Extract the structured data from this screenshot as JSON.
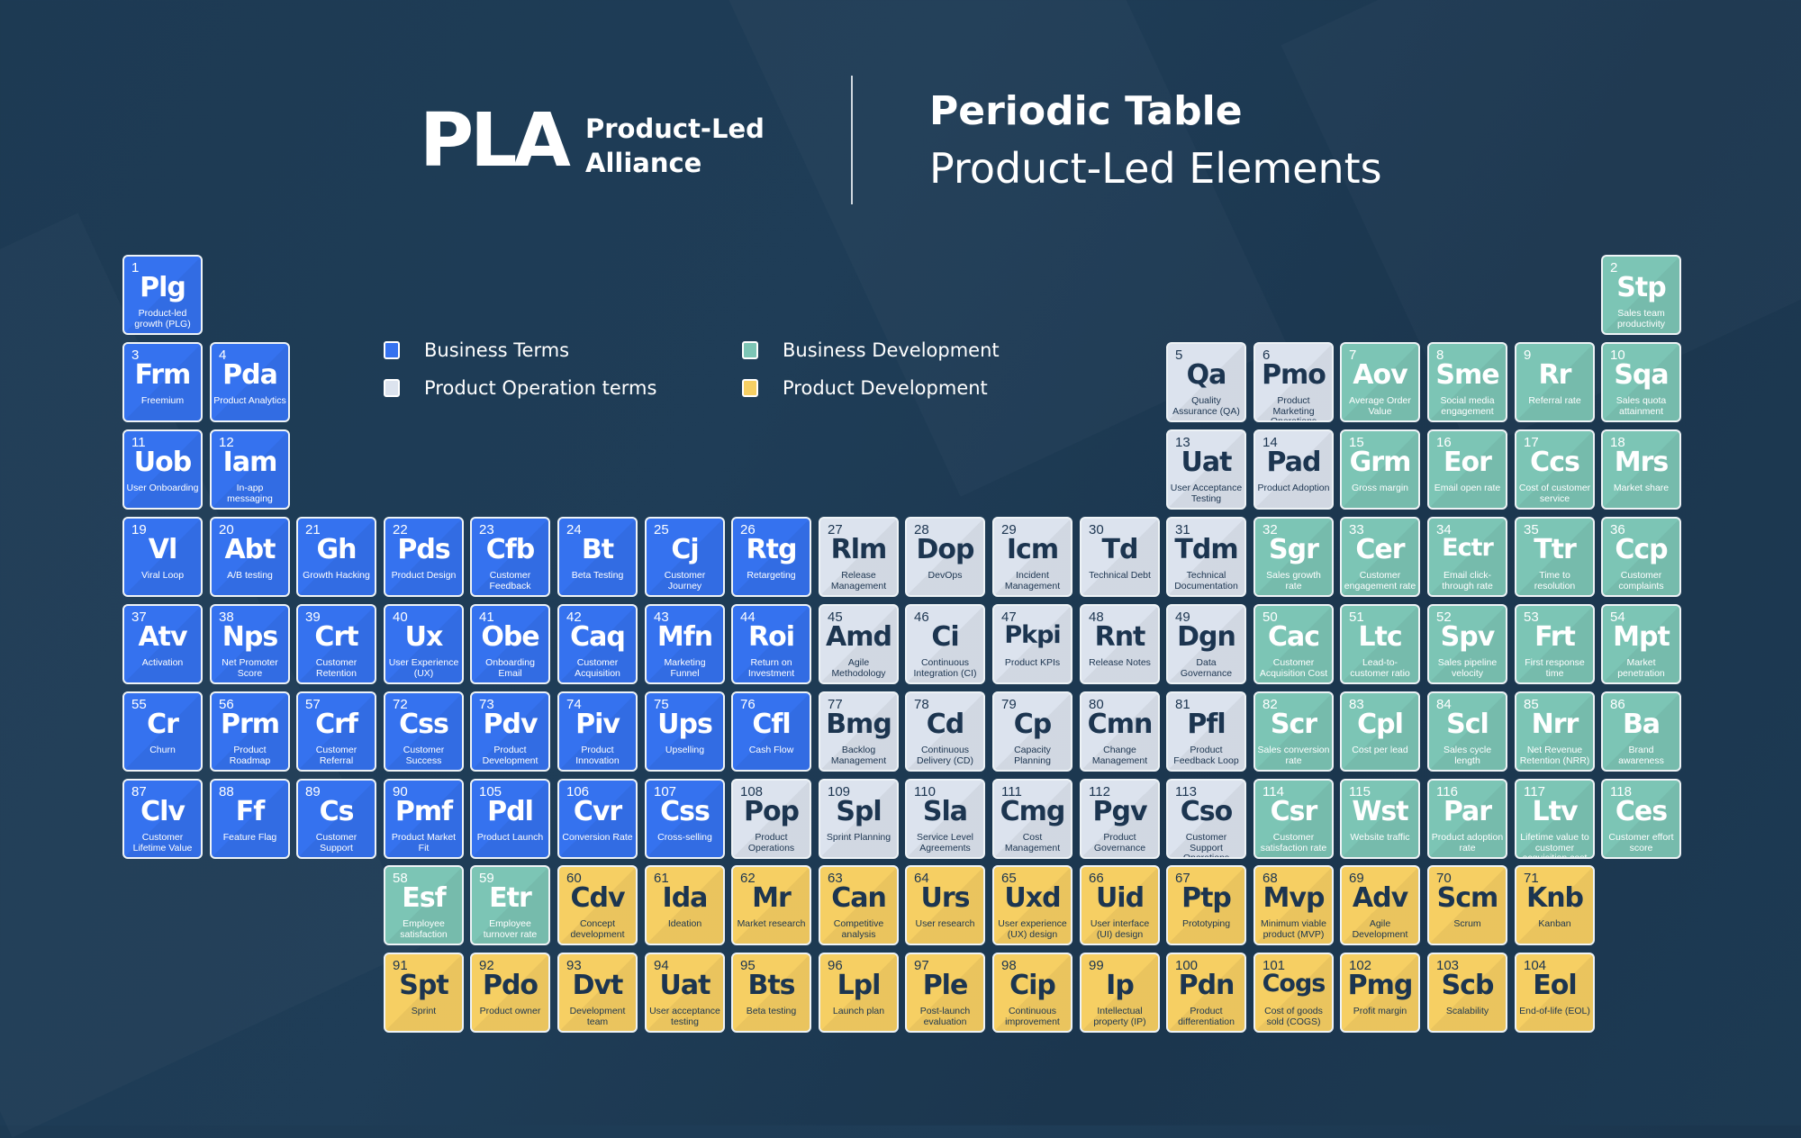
{
  "header": {
    "logo_text": "PLA",
    "logo_line1": "Product-Led",
    "logo_line2": "Alliance",
    "title": "Periodic Table",
    "subtitle": "Product-Led Elements"
  },
  "categories": {
    "b": {
      "label": "Business Terms",
      "color": "#3572ef"
    },
    "p": {
      "label": "Product Operation terms",
      "color": "#dce3ee"
    },
    "d": {
      "label": "Business Development",
      "color": "#7cc5b5"
    },
    "y": {
      "label": "Product Development",
      "color": "#f6cf63"
    }
  },
  "rows": [
    {
      "cells": [
        {
          "n": "1",
          "sym": "Plg",
          "name": "Product-led growth (PLG)",
          "cat": "b"
        },
        null,
        null,
        null,
        null,
        null,
        null,
        null,
        null,
        null,
        null,
        null,
        null,
        null,
        null,
        null,
        null,
        {
          "n": "2",
          "sym": "Stp",
          "name": "Sales team productivity",
          "cat": "d"
        }
      ]
    },
    {
      "cells": [
        {
          "n": "3",
          "sym": "Frm",
          "name": "Freemium",
          "cat": "b"
        },
        {
          "n": "4",
          "sym": "Pda",
          "name": "Product Analytics",
          "cat": "b"
        },
        null,
        null,
        null,
        null,
        null,
        null,
        null,
        null,
        null,
        null,
        {
          "n": "5",
          "sym": "Qa",
          "name": "Quality Assurance (QA)",
          "cat": "p"
        },
        {
          "n": "6",
          "sym": "Pmo",
          "name": "Product Marketing Operations",
          "cat": "p"
        },
        {
          "n": "7",
          "sym": "Aov",
          "name": "Average Order Value",
          "cat": "d"
        },
        {
          "n": "8",
          "sym": "Sme",
          "name": "Social media engagement",
          "cat": "d"
        },
        {
          "n": "9",
          "sym": "Rr",
          "name": "Referral rate",
          "cat": "d"
        },
        {
          "n": "10",
          "sym": "Sqa",
          "name": "Sales quota attainment",
          "cat": "d"
        }
      ]
    },
    {
      "cells": [
        {
          "n": "11",
          "sym": "Uob",
          "name": "User Onboarding",
          "cat": "b"
        },
        {
          "n": "12",
          "sym": "Iam",
          "name": "In-app messaging",
          "cat": "b"
        },
        null,
        null,
        null,
        null,
        null,
        null,
        null,
        null,
        null,
        null,
        {
          "n": "13",
          "sym": "Uat",
          "name": "User Acceptance Testing",
          "cat": "p"
        },
        {
          "n": "14",
          "sym": "Pad",
          "name": "Product Adoption",
          "cat": "p"
        },
        {
          "n": "15",
          "sym": "Grm",
          "name": "Gross margin",
          "cat": "d"
        },
        {
          "n": "16",
          "sym": "Eor",
          "name": "Email open rate",
          "cat": "d"
        },
        {
          "n": "17",
          "sym": "Ccs",
          "name": "Cost of customer service",
          "cat": "d"
        },
        {
          "n": "18",
          "sym": "Mrs",
          "name": "Market share",
          "cat": "d"
        }
      ]
    },
    {
      "cells": [
        {
          "n": "19",
          "sym": "Vl",
          "name": "Viral Loop",
          "cat": "b"
        },
        {
          "n": "20",
          "sym": "Abt",
          "name": "A/B testing",
          "cat": "b"
        },
        {
          "n": "21",
          "sym": "Gh",
          "name": "Growth Hacking",
          "cat": "b"
        },
        {
          "n": "22",
          "sym": "Pds",
          "name": "Product Design",
          "cat": "b"
        },
        {
          "n": "23",
          "sym": "Cfb",
          "name": "Customer Feedback",
          "cat": "b"
        },
        {
          "n": "24",
          "sym": "Bt",
          "name": "Beta Testing",
          "cat": "b"
        },
        {
          "n": "25",
          "sym": "Cj",
          "name": "Customer Journey",
          "cat": "b"
        },
        {
          "n": "26",
          "sym": "Rtg",
          "name": "Retargeting",
          "cat": "b"
        },
        {
          "n": "27",
          "sym": "Rlm",
          "name": "Release Management",
          "cat": "p"
        },
        {
          "n": "28",
          "sym": "Dop",
          "name": "DevOps",
          "cat": "p"
        },
        {
          "n": "29",
          "sym": "Icm",
          "name": "Incident Management",
          "cat": "p"
        },
        {
          "n": "30",
          "sym": "Td",
          "name": "Technical Debt",
          "cat": "p"
        },
        {
          "n": "31",
          "sym": "Tdm",
          "name": "Technical Documentation",
          "cat": "p"
        },
        {
          "n": "32",
          "sym": "Sgr",
          "name": "Sales growth rate",
          "cat": "d"
        },
        {
          "n": "33",
          "sym": "Cer",
          "name": "Customer engagement rate",
          "cat": "d"
        },
        {
          "n": "34",
          "sym": "Ectr",
          "name": "Email click-through rate",
          "cat": "d"
        },
        {
          "n": "35",
          "sym": "Ttr",
          "name": "Time to resolution",
          "cat": "d"
        },
        {
          "n": "36",
          "sym": "Ccp",
          "name": "Customer complaints",
          "cat": "d"
        }
      ]
    },
    {
      "cells": [
        {
          "n": "37",
          "sym": "Atv",
          "name": "Activation",
          "cat": "b"
        },
        {
          "n": "38",
          "sym": "Nps",
          "name": "Net Promoter Score",
          "cat": "b"
        },
        {
          "n": "39",
          "sym": "Crt",
          "name": "Customer Retention",
          "cat": "b"
        },
        {
          "n": "40",
          "sym": "Ux",
          "name": "User Experience (UX)",
          "cat": "b"
        },
        {
          "n": "41",
          "sym": "Obe",
          "name": "Onboarding Email",
          "cat": "b"
        },
        {
          "n": "42",
          "sym": "Caq",
          "name": "Customer Acquisition",
          "cat": "b"
        },
        {
          "n": "43",
          "sym": "Mfn",
          "name": "Marketing Funnel",
          "cat": "b"
        },
        {
          "n": "44",
          "sym": "Roi",
          "name": "Return on Investment",
          "cat": "b"
        },
        {
          "n": "45",
          "sym": "Amd",
          "name": "Agile Methodology",
          "cat": "p"
        },
        {
          "n": "46",
          "sym": "Ci",
          "name": "Continuous Integration (CI)",
          "cat": "p"
        },
        {
          "n": "47",
          "sym": "Pkpi",
          "name": "Product KPIs",
          "cat": "p"
        },
        {
          "n": "48",
          "sym": "Rnt",
          "name": "Release Notes",
          "cat": "p"
        },
        {
          "n": "49",
          "sym": "Dgn",
          "name": "Data Governance",
          "cat": "p"
        },
        {
          "n": "50",
          "sym": "Cac",
          "name": "Customer Acquisition Cost",
          "cat": "d"
        },
        {
          "n": "51",
          "sym": "Ltc",
          "name": "Lead-to-customer ratio",
          "cat": "d"
        },
        {
          "n": "52",
          "sym": "Spv",
          "name": "Sales pipeline velocity",
          "cat": "d"
        },
        {
          "n": "53",
          "sym": "Frt",
          "name": "First response time",
          "cat": "d"
        },
        {
          "n": "54",
          "sym": "Mpt",
          "name": "Market penetration",
          "cat": "d"
        }
      ]
    },
    {
      "cells": [
        {
          "n": "55",
          "sym": "Cr",
          "name": "Churn",
          "cat": "b"
        },
        {
          "n": "56",
          "sym": "Prm",
          "name": "Product Roadmap",
          "cat": "b"
        },
        {
          "n": "57",
          "sym": "Crf",
          "name": "Customer Referral",
          "cat": "b"
        },
        {
          "n": "72",
          "sym": "Css",
          "name": "Customer Success",
          "cat": "b"
        },
        {
          "n": "73",
          "sym": "Pdv",
          "name": "Product Development",
          "cat": "b"
        },
        {
          "n": "74",
          "sym": "Piv",
          "name": "Product Innovation",
          "cat": "b"
        },
        {
          "n": "75",
          "sym": "Ups",
          "name": "Upselling",
          "cat": "b"
        },
        {
          "n": "76",
          "sym": "Cfl",
          "name": "Cash Flow",
          "cat": "b"
        },
        {
          "n": "77",
          "sym": "Bmg",
          "name": "Backlog Management",
          "cat": "p"
        },
        {
          "n": "78",
          "sym": "Cd",
          "name": "Continuous Delivery (CD)",
          "cat": "p"
        },
        {
          "n": "79",
          "sym": "Cp",
          "name": "Capacity Planning",
          "cat": "p"
        },
        {
          "n": "80",
          "sym": "Cmn",
          "name": "Change Management",
          "cat": "p"
        },
        {
          "n": "81",
          "sym": "Pfl",
          "name": "Product Feedback Loop",
          "cat": "p"
        },
        {
          "n": "82",
          "sym": "Scr",
          "name": "Sales conversion rate",
          "cat": "d"
        },
        {
          "n": "83",
          "sym": "Cpl",
          "name": "Cost per lead",
          "cat": "d"
        },
        {
          "n": "84",
          "sym": "Scl",
          "name": "Sales cycle length",
          "cat": "d"
        },
        {
          "n": "85",
          "sym": "Nrr",
          "name": "Net Revenue Retention (NRR)",
          "cat": "d"
        },
        {
          "n": "86",
          "sym": "Ba",
          "name": "Brand awareness",
          "cat": "d"
        }
      ]
    },
    {
      "cells": [
        {
          "n": "87",
          "sym": "Clv",
          "name": "Customer Lifetime Value",
          "cat": "b"
        },
        {
          "n": "88",
          "sym": "Ff",
          "name": "Feature Flag",
          "cat": "b"
        },
        {
          "n": "89",
          "sym": "Cs",
          "name": "Customer Support",
          "cat": "b"
        },
        {
          "n": "90",
          "sym": "Pmf",
          "name": "Product Market Fit",
          "cat": "b"
        },
        {
          "n": "105",
          "sym": "Pdl",
          "name": "Product Launch",
          "cat": "b"
        },
        {
          "n": "106",
          "sym": "Cvr",
          "name": "Conversion Rate",
          "cat": "b"
        },
        {
          "n": "107",
          "sym": "Css",
          "name": "Cross-selling",
          "cat": "b"
        },
        {
          "n": "108",
          "sym": "Pop",
          "name": "Product Operations",
          "cat": "p"
        },
        {
          "n": "109",
          "sym": "Spl",
          "name": "Sprint Planning",
          "cat": "p"
        },
        {
          "n": "110",
          "sym": "Sla",
          "name": "Service Level Agreements",
          "cat": "p"
        },
        {
          "n": "111",
          "sym": "Cmg",
          "name": "Cost Management",
          "cat": "p"
        },
        {
          "n": "112",
          "sym": "Pgv",
          "name": "Product Governance",
          "cat": "p"
        },
        {
          "n": "113",
          "sym": "Cso",
          "name": "Customer Support Operations",
          "cat": "p"
        },
        {
          "n": "114",
          "sym": "Csr",
          "name": "Customer satisfaction rate",
          "cat": "d"
        },
        {
          "n": "115",
          "sym": "Wst",
          "name": "Website traffic",
          "cat": "d"
        },
        {
          "n": "116",
          "sym": "Par",
          "name": "Product adoption rate",
          "cat": "d"
        },
        {
          "n": "117",
          "sym": "Ltv",
          "name": "Lifetime value to customer acquisition cost",
          "cat": "d"
        },
        {
          "n": "118",
          "sym": "Ces",
          "name": "Customer effort score",
          "cat": "d"
        }
      ]
    },
    {
      "cells": [
        null,
        null,
        null,
        {
          "n": "58",
          "sym": "Esf",
          "name": "Employee satisfaction",
          "cat": "d"
        },
        {
          "n": "59",
          "sym": "Etr",
          "name": "Employee turnover rate",
          "cat": "d"
        },
        {
          "n": "60",
          "sym": "Cdv",
          "name": "Concept development",
          "cat": "y"
        },
        {
          "n": "61",
          "sym": "Ida",
          "name": "Ideation",
          "cat": "y"
        },
        {
          "n": "62",
          "sym": "Mr",
          "name": "Market research",
          "cat": "y"
        },
        {
          "n": "63",
          "sym": "Can",
          "name": "Competitive analysis",
          "cat": "y"
        },
        {
          "n": "64",
          "sym": "Urs",
          "name": "User research",
          "cat": "y"
        },
        {
          "n": "65",
          "sym": "Uxd",
          "name": "User experience (UX) design",
          "cat": "y"
        },
        {
          "n": "66",
          "sym": "Uid",
          "name": "User interface (UI) design",
          "cat": "y"
        },
        {
          "n": "67",
          "sym": "Ptp",
          "name": "Prototyping",
          "cat": "y"
        },
        {
          "n": "68",
          "sym": "Mvp",
          "name": "Minimum viable product (MVP)",
          "cat": "y"
        },
        {
          "n": "69",
          "sym": "Adv",
          "name": "Agile Development",
          "cat": "y"
        },
        {
          "n": "70",
          "sym": "Scm",
          "name": "Scrum",
          "cat": "y"
        },
        {
          "n": "71",
          "sym": "Knb",
          "name": "Kanban",
          "cat": "y"
        }
      ]
    },
    {
      "cells": [
        null,
        null,
        null,
        {
          "n": "91",
          "sym": "Spt",
          "name": "Sprint",
          "cat": "y"
        },
        {
          "n": "92",
          "sym": "Pdo",
          "name": "Product owner",
          "cat": "y"
        },
        {
          "n": "93",
          "sym": "Dvt",
          "name": "Development team",
          "cat": "y"
        },
        {
          "n": "94",
          "sym": "Uat",
          "name": "User acceptance testing",
          "cat": "y"
        },
        {
          "n": "95",
          "sym": "Bts",
          "name": "Beta testing",
          "cat": "y"
        },
        {
          "n": "96",
          "sym": "Lpl",
          "name": "Launch plan",
          "cat": "y"
        },
        {
          "n": "97",
          "sym": "Ple",
          "name": "Post-launch evaluation",
          "cat": "y"
        },
        {
          "n": "98",
          "sym": "Cip",
          "name": "Continuous improvement",
          "cat": "y"
        },
        {
          "n": "99",
          "sym": "Ip",
          "name": "Intellectual property (IP)",
          "cat": "y"
        },
        {
          "n": "100",
          "sym": "Pdn",
          "name": "Product differentiation",
          "cat": "y"
        },
        {
          "n": "101",
          "sym": "Cogs",
          "name": "Cost of goods sold (COGS)",
          "cat": "y"
        },
        {
          "n": "102",
          "sym": "Pmg",
          "name": "Profit margin",
          "cat": "y"
        },
        {
          "n": "103",
          "sym": "Scb",
          "name": "Scalability",
          "cat": "y"
        },
        {
          "n": "104",
          "sym": "Eol",
          "name": "End-of-life (EOL)",
          "cat": "y"
        }
      ]
    }
  ]
}
